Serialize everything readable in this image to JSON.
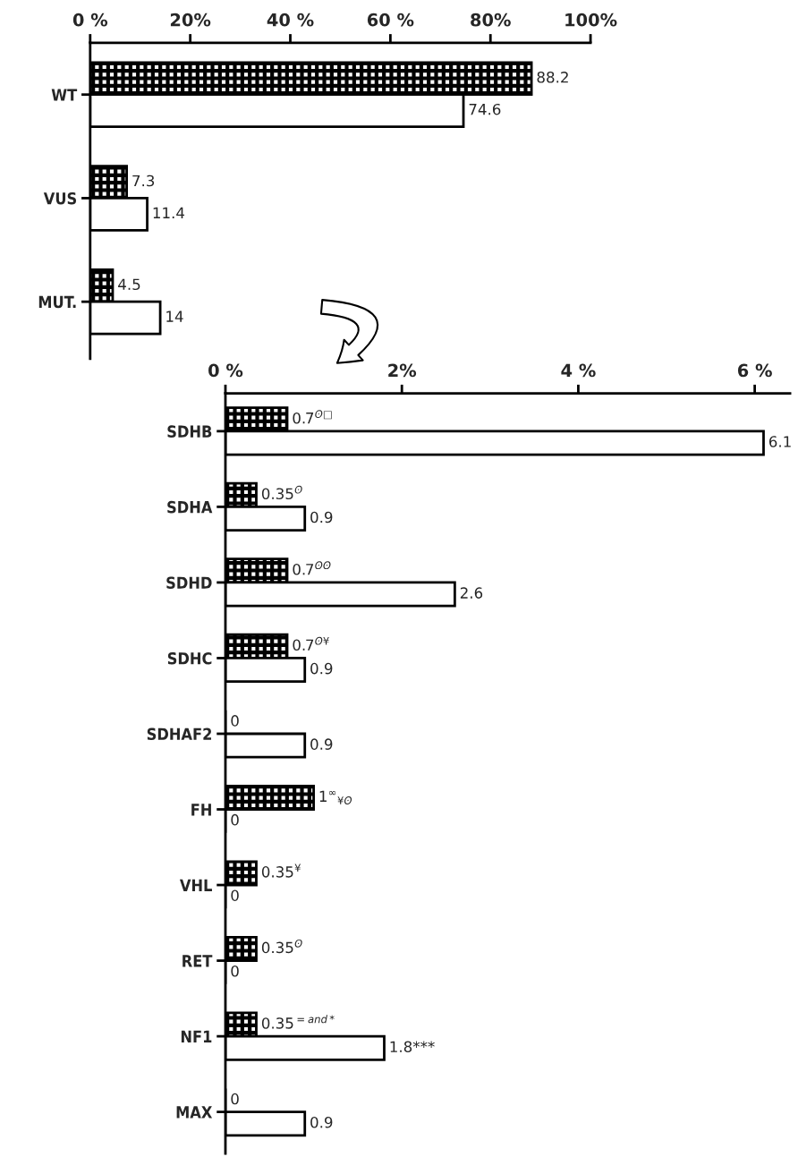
{
  "chart_data": [
    {
      "type": "bar",
      "orientation": "horizontal",
      "categories": [
        "WT",
        "VUS",
        "MUT."
      ],
      "series": [
        {
          "color": "#000000",
          "values": [
            88.2,
            7.3,
            4.5
          ],
          "value_labels": [
            "88.2",
            "7.3",
            "4.5"
          ]
        },
        {
          "color": "#ffffff",
          "values": [
            74.6,
            11.4,
            14
          ],
          "value_labels": [
            "74.6",
            "11.4",
            "14"
          ]
        }
      ],
      "xlim": [
        0,
        100
      ],
      "xticks": [
        {
          "value": 0,
          "label": "0 %"
        },
        {
          "value": 20,
          "label": "20%"
        },
        {
          "value": 40,
          "label": "40 %"
        },
        {
          "value": 60,
          "label": "60 %"
        },
        {
          "value": 80,
          "label": "80%"
        },
        {
          "value": 100,
          "label": "100%"
        }
      ],
      "grid": false,
      "legend": false
    },
    {
      "type": "bar",
      "orientation": "horizontal",
      "categories": [
        "SDHB",
        "SDHA",
        "SDHD",
        "SDHC",
        "SDHAF2",
        "FH",
        "VHL",
        "RET",
        "NF1",
        "MAX"
      ],
      "series": [
        {
          "color": "#000000",
          "values": [
            0.7,
            0.35,
            0.7,
            0.7,
            0,
            1,
            0.35,
            0.35,
            0.35,
            0
          ],
          "value_labels": [
            "0.7$^{ʘ□}$",
            "0.35$^{ʘ}$",
            "0.7$^{ʘʘ}$",
            "0.7$^{ʘ¥}$",
            "0",
            "1$^{∞}$$_{¥ʘ}$",
            "0.35$^{¥}$",
            "0.35$^{ʘ}$",
            "0.35$^{=}$$^{and*}$",
            "0"
          ]
        },
        {
          "color": "#ffffff",
          "values": [
            6.1,
            0.9,
            2.6,
            0.9,
            0.9,
            0,
            0,
            0,
            1.8,
            0.9
          ],
          "value_labels": [
            "6.1",
            "0.9",
            "2.6",
            "0.9",
            "0.9",
            "0",
            "0",
            "0",
            "1.8***",
            "0.9"
          ]
        }
      ],
      "xlim": [
        0,
        6.4
      ],
      "xticks": [
        {
          "value": 0,
          "label": "0 %"
        },
        {
          "value": 2,
          "label": "2%"
        },
        {
          "value": 4,
          "label": "4 %"
        },
        {
          "value": 6,
          "label": "6 %"
        }
      ],
      "grid": false,
      "legend": false
    }
  ]
}
